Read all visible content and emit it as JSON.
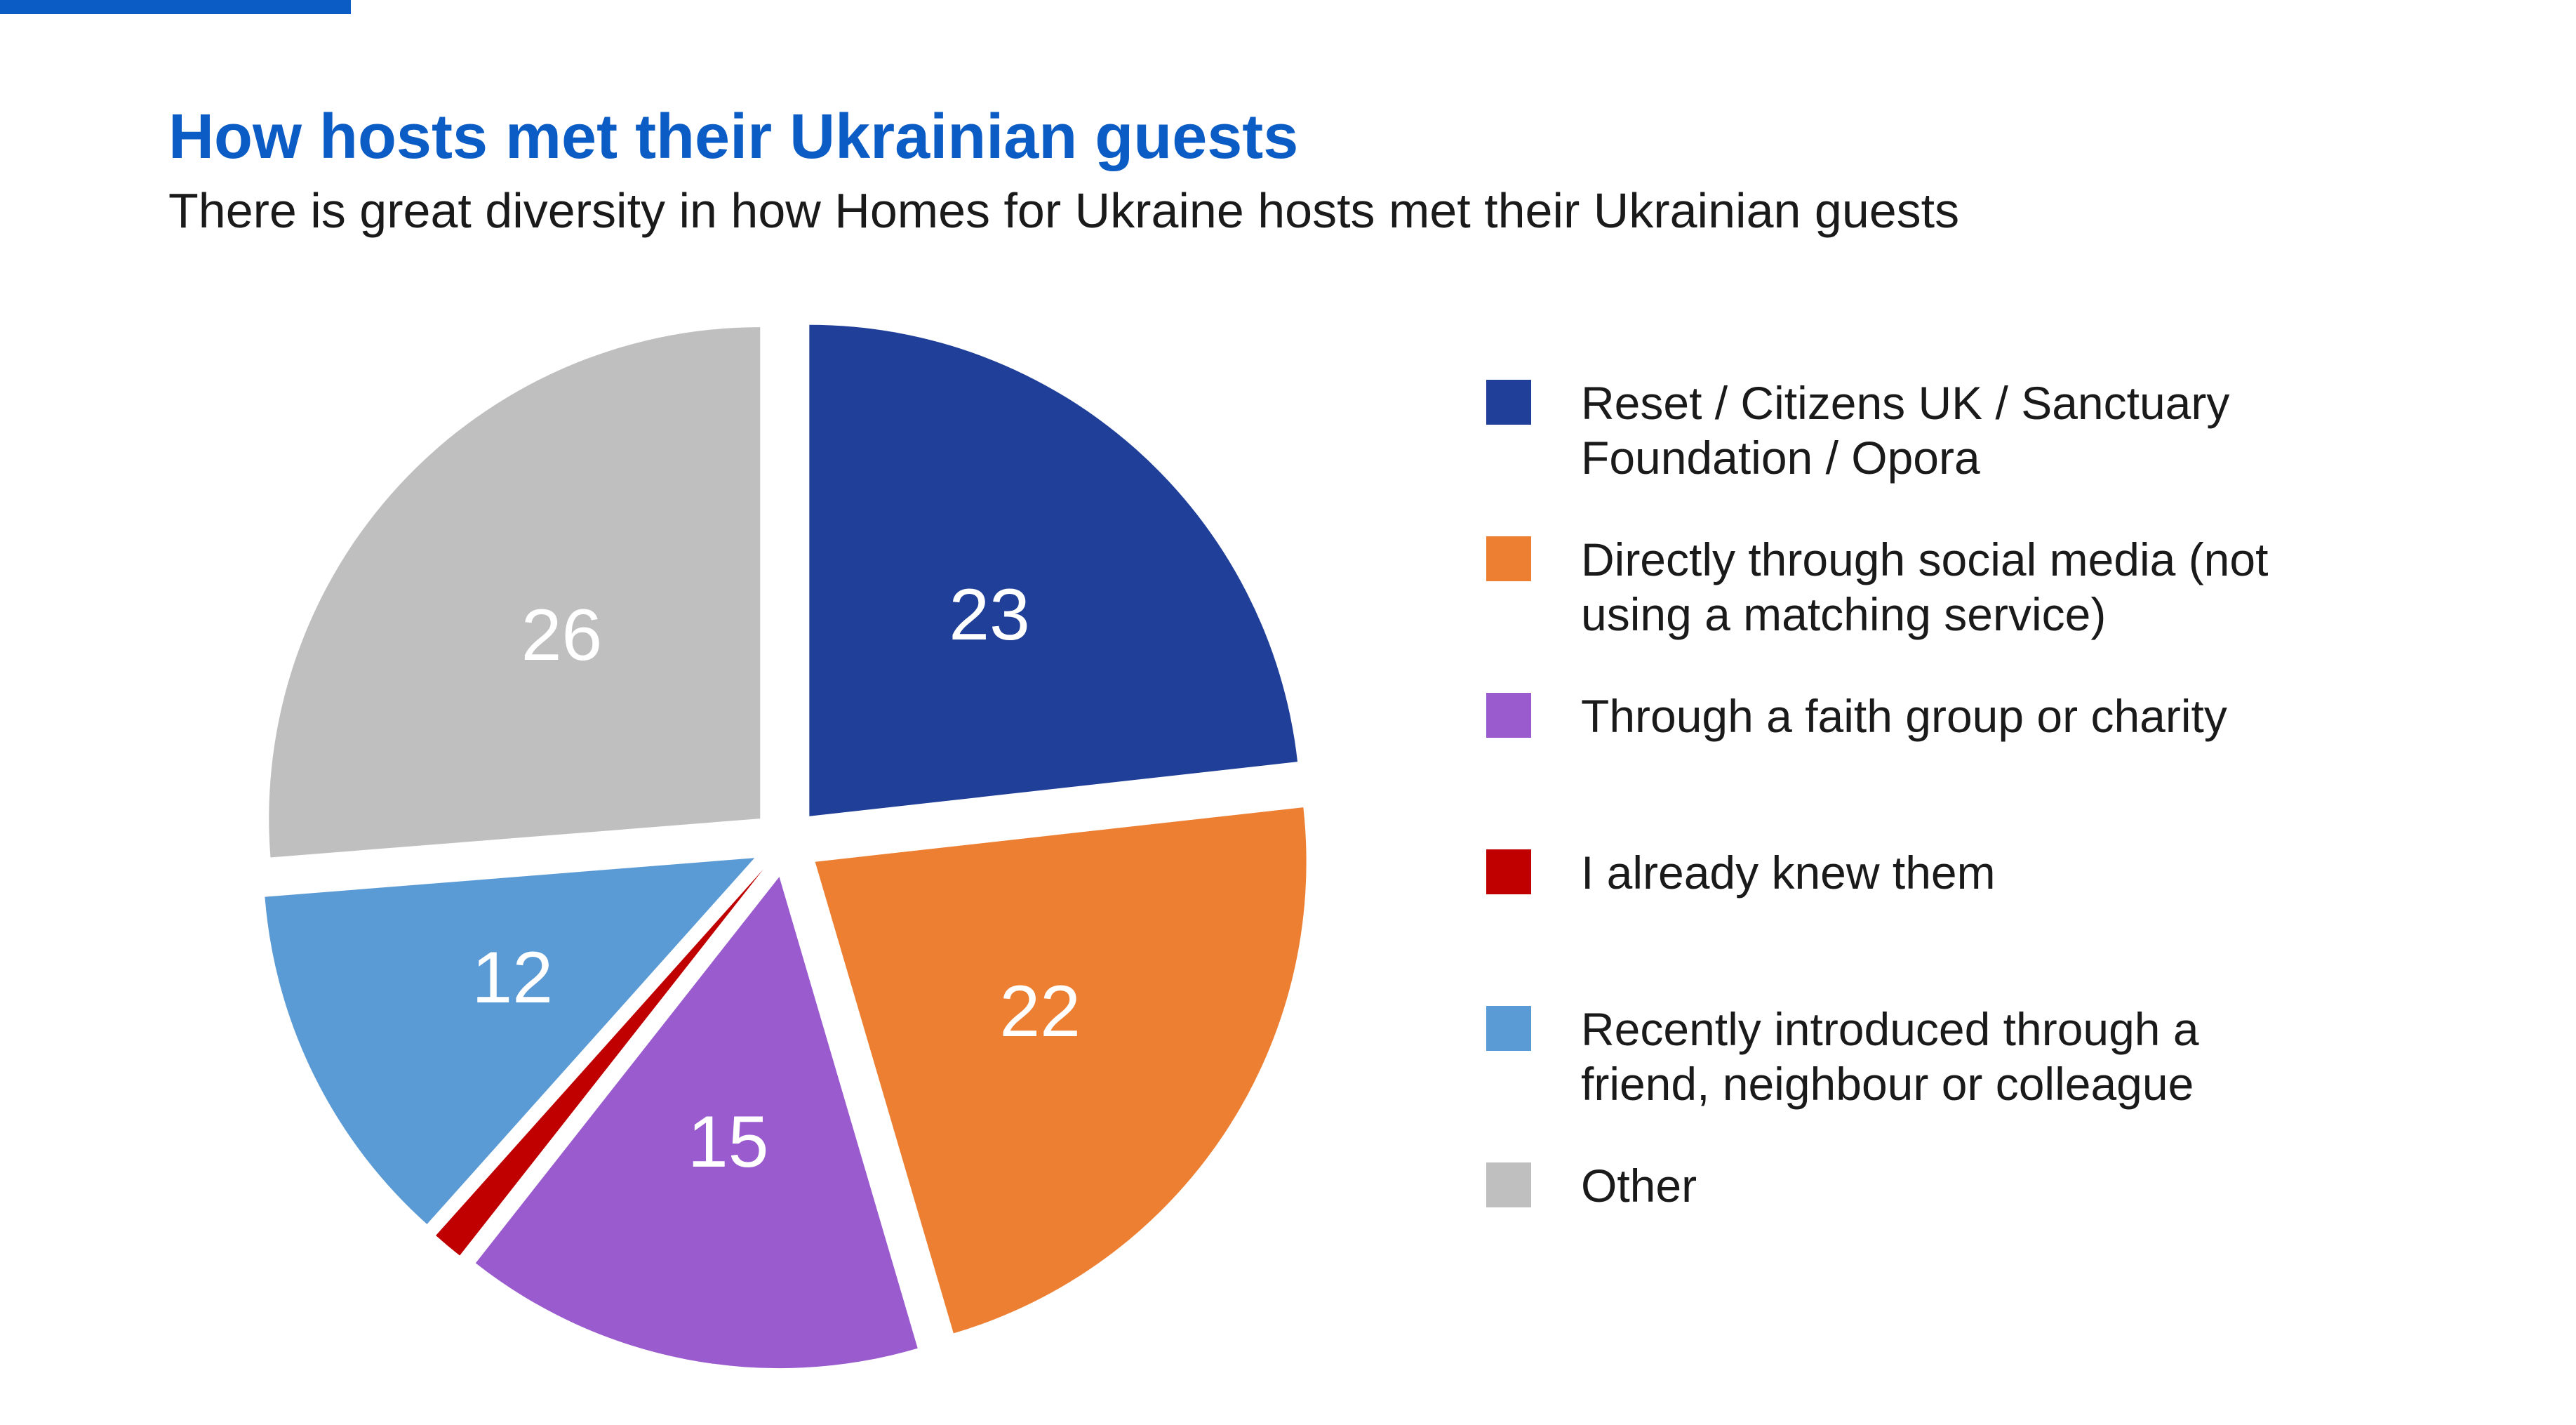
{
  "header": {
    "title": "How hosts met their Ukrainian guests",
    "subtitle": "There is great diversity in how Homes for Ukraine hosts met their Ukrainian guests"
  },
  "colors": {
    "accent": "#0B5CC4",
    "title": "#0B5CC4"
  },
  "chart_data": {
    "type": "pie",
    "title": "How hosts met their Ukrainian guests",
    "subtitle": "There is great diversity in how Homes for Ukraine hosts met their Ukrainian guests",
    "legend_position": "right",
    "slices": [
      {
        "label": "Reset / Citizens UK / Sanctuary Foundation / Opora",
        "value": 23,
        "value_label": "23",
        "color": "#1F3F99"
      },
      {
        "label": "Directly through social media (not using a matching service)",
        "value": 22,
        "value_label": "22",
        "color": "#ED7F33"
      },
      {
        "label": "Through a faith group or charity",
        "value": 15,
        "value_label": "15",
        "color": "#9A5BCE"
      },
      {
        "label": "I already knew them",
        "value": 1,
        "value_label": "",
        "color": "#C00000"
      },
      {
        "label": "Recently introduced through a friend, neighbour or colleague",
        "value": 12,
        "value_label": "12",
        "color": "#5B9BD5"
      },
      {
        "label": "Other",
        "value": 26,
        "value_label": "26",
        "color": "#BFBFBF"
      }
    ]
  }
}
